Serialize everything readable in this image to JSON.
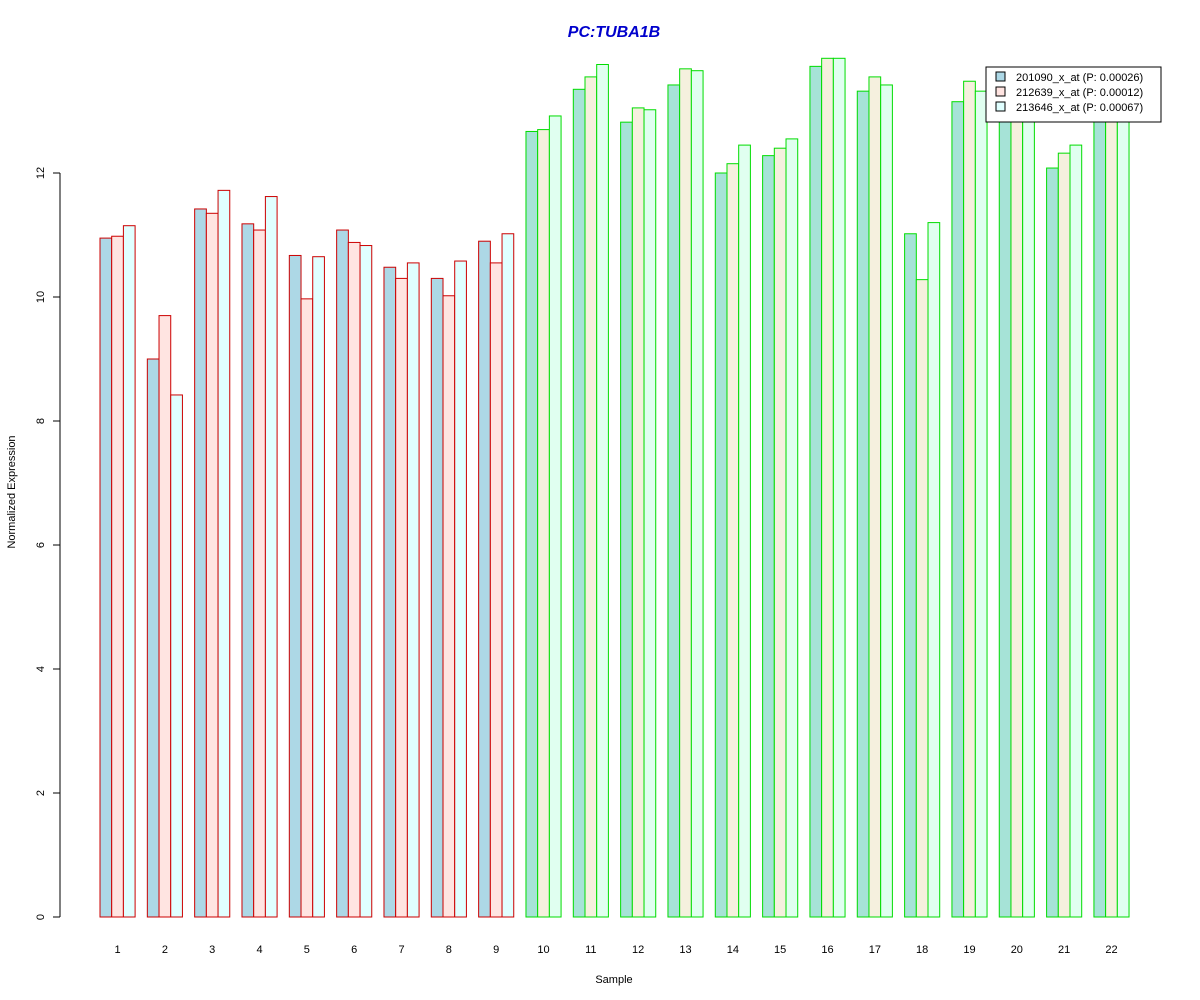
{
  "chart_data": {
    "type": "bar",
    "title": "PC:TUBA1B",
    "xlabel": "Sample",
    "ylabel": "Normalized Expression",
    "ylim": [
      0,
      14
    ],
    "yticks": [
      0,
      2,
      4,
      6,
      8,
      10,
      12
    ],
    "grid": false,
    "legend_position": "top-right",
    "categories": [
      "1",
      "2",
      "3",
      "4",
      "5",
      "6",
      "7",
      "8",
      "9",
      "10",
      "11",
      "12",
      "13",
      "14",
      "15",
      "16",
      "17",
      "18",
      "19",
      "20",
      "21",
      "22"
    ],
    "group_border_colors": [
      "#cc0000",
      "#cc0000",
      "#cc0000",
      "#cc0000",
      "#cc0000",
      "#cc0000",
      "#cc0000",
      "#cc0000",
      "#cc0000",
      "#00dd00",
      "#00dd00",
      "#00dd00",
      "#00dd00",
      "#00dd00",
      "#00dd00",
      "#00dd00",
      "#00dd00",
      "#00dd00",
      "#00dd00",
      "#00dd00",
      "#00dd00",
      "#00dd00"
    ],
    "series": [
      {
        "name": "201090_x_at (P: 0.00026)",
        "fill_colors": [
          "#add8e6",
          "#a6e3d7"
        ],
        "values": [
          10.95,
          9.0,
          11.42,
          11.18,
          10.67,
          11.08,
          10.48,
          10.3,
          10.9,
          12.67,
          13.35,
          12.82,
          13.42,
          12.0,
          12.28,
          13.72,
          13.32,
          11.02,
          13.15,
          13.0,
          12.08,
          13.0
        ]
      },
      {
        "name": "212639_x_at (P: 0.00012)",
        "fill_colors": [
          "#ffe4e1",
          "#f5f0de"
        ],
        "values": [
          10.98,
          9.7,
          11.35,
          11.08,
          9.97,
          10.88,
          10.3,
          10.02,
          10.55,
          12.7,
          13.55,
          13.05,
          13.68,
          12.15,
          12.4,
          13.85,
          13.55,
          10.28,
          13.48,
          12.95,
          12.32,
          12.95
        ]
      },
      {
        "name": "213646_x_at (P: 0.00067)",
        "fill_colors": [
          "#e0ffff",
          "#e0fff0"
        ],
        "values": [
          11.15,
          8.42,
          11.72,
          11.62,
          10.65,
          10.83,
          10.55,
          10.58,
          11.02,
          12.92,
          13.75,
          13.02,
          13.65,
          12.45,
          12.55,
          13.85,
          13.42,
          11.2,
          13.32,
          12.95,
          12.45,
          12.9
        ]
      }
    ]
  }
}
